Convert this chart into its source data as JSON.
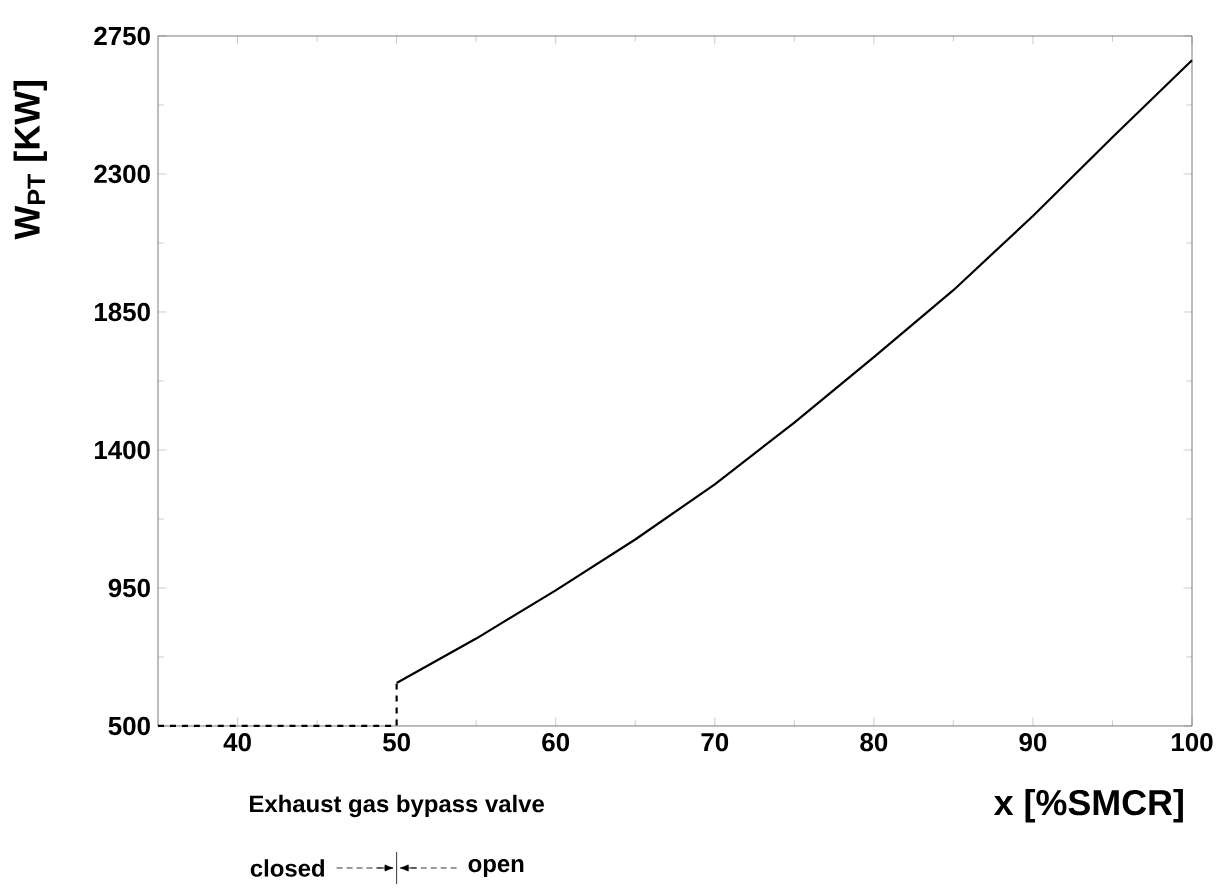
{
  "chart_data": {
    "type": "line",
    "xlabel": "x [%SMCR]",
    "ylabel": "W$_{PT}$ [KW]",
    "xlim": [
      35,
      100
    ],
    "ylim": [
      500,
      2750
    ],
    "xticks": [
      40,
      50,
      60,
      70,
      80,
      90,
      100
    ],
    "yticks": [
      500,
      950,
      1400,
      1850,
      2300,
      2750
    ],
    "grid": false,
    "annotations": [
      "Exhaust gas bypass valve",
      "closed",
      "open"
    ],
    "series": [
      {
        "color": "#000000",
        "line_style": "dashed",
        "x": [
          35,
          50,
          50
        ],
        "values": [
          500,
          500,
          640
        ]
      },
      {
        "color": "#000000",
        "line_style": "solid",
        "x": [
          50,
          55,
          60,
          65,
          70,
          75,
          80,
          85,
          90,
          95,
          100
        ],
        "values": [
          640,
          785,
          942,
          1108,
          1288,
          1489,
          1703,
          1921,
          2163,
          2420,
          2671
        ]
      }
    ]
  }
}
